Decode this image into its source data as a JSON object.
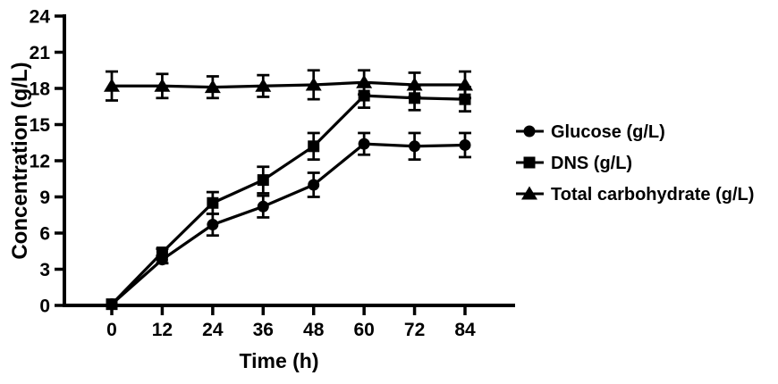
{
  "figure": {
    "background_color": "#ffffff",
    "ink_color": "#000000"
  },
  "chart_data": {
    "type": "line",
    "title": "",
    "xlabel": "Time (h)",
    "ylabel": "Concentration (g/L)",
    "grid": false,
    "legend_position": "right",
    "xlim": [
      -11,
      96
    ],
    "ylim": [
      0,
      24
    ],
    "x_ticks": [
      0,
      12,
      24,
      36,
      48,
      60,
      72,
      84
    ],
    "y_ticks": [
      0,
      3,
      6,
      9,
      12,
      15,
      18,
      21,
      24
    ],
    "x": [
      0,
      12,
      24,
      36,
      48,
      60,
      72,
      84
    ],
    "series": [
      {
        "name": "Glucose (g/L)",
        "marker": "circle",
        "values": [
          0.1,
          3.8,
          6.7,
          8.2,
          10.0,
          13.4,
          13.2,
          13.3
        ],
        "errors": [
          0,
          0.3,
          0.9,
          0.9,
          1.0,
          0.9,
          1.1,
          1.0
        ]
      },
      {
        "name": "DNS (g/L)",
        "marker": "square",
        "values": [
          0.1,
          4.4,
          8.5,
          10.4,
          13.2,
          17.4,
          17.2,
          17.1
        ],
        "errors": [
          0,
          0.3,
          0.9,
          1.1,
          1.1,
          1.0,
          1.0,
          1.0
        ]
      },
      {
        "name": "Total carbohydrate (g/L)",
        "marker": "triangle",
        "values": [
          18.2,
          18.2,
          18.1,
          18.2,
          18.3,
          18.5,
          18.3,
          18.3
        ],
        "errors": [
          1.2,
          1.0,
          0.9,
          0.9,
          1.2,
          1.0,
          1.0,
          1.1
        ]
      }
    ]
  }
}
